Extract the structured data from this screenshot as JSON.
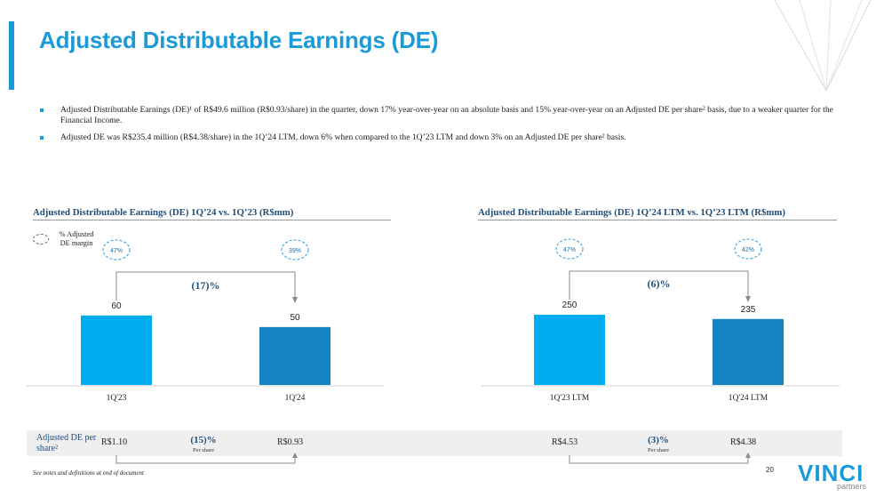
{
  "page": {
    "title": "Adjusted Distributable Earnings (DE)",
    "bullets": [
      "Adjusted Distributable Earnings (DE)¹ of R$49.6 million (R$0.93/share) in the quarter, down 17% year-over-year on an absolute basis and 15% year-over-year on an Adjusted DE per share² basis, due to a weaker quarter for the Financial Income.",
      "Adjusted DE was R$235.4 million (R$4.38/share) in the 1Q’24 LTM, down 6% when compared to the 1Q’23 LTM and down 3% on an Adjusted DE per share² basis."
    ],
    "legend_label": "% Adjusted DE margin",
    "eps_label": "Adjusted DE per share²",
    "footnote": "See notes and definitions at end of document",
    "page_number": "20",
    "logo_text": "VINCI",
    "logo_sub": "partners"
  },
  "chart_data": [
    {
      "type": "bar",
      "title": "Adjusted Distributable Earnings (DE) 1Q’24 vs. 1Q’23 (R$mm)",
      "categories": [
        "1Q'23",
        "1Q'24"
      ],
      "values": [
        60,
        50
      ],
      "value_labels": [
        "60",
        "50"
      ],
      "colors": [
        "#00aeef",
        "#1482c3"
      ],
      "margins": [
        "47%",
        "39%"
      ],
      "change": "(17)%",
      "per_share": [
        "R$1.10",
        "R$0.93"
      ],
      "per_share_change": "(15)%",
      "per_share_note": "Per share",
      "ylim": [
        0,
        80
      ]
    },
    {
      "type": "bar",
      "title": "Adjusted Distributable Earnings (DE) 1Q’24 LTM vs. 1Q’23 LTM (R$mm)",
      "categories": [
        "1Q'23 LTM",
        "1Q'24 LTM"
      ],
      "values": [
        250,
        235
      ],
      "value_labels": [
        "250",
        "235"
      ],
      "colors": [
        "#00aeef",
        "#1482c3"
      ],
      "margins": [
        "47%",
        "42%"
      ],
      "change": "(6)%",
      "per_share": [
        "R$4.53",
        "R$4.38"
      ],
      "per_share_change": "(3)%",
      "per_share_note": "Per share",
      "ylim": [
        0,
        330
      ]
    }
  ]
}
